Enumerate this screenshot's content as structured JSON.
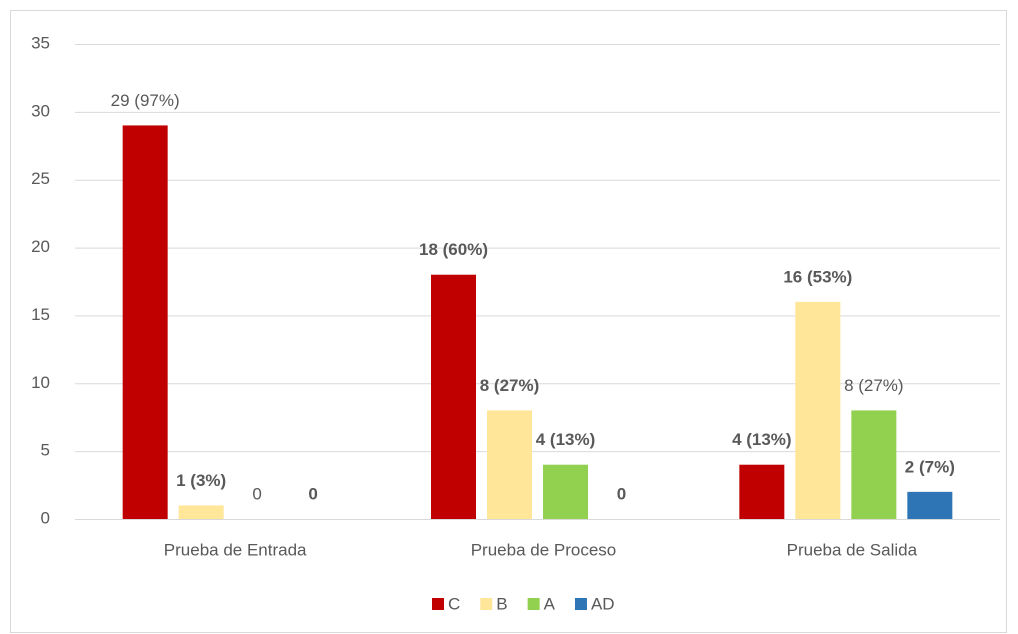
{
  "chart_data": {
    "type": "bar",
    "categories": [
      "Prueba de Entrada",
      "Prueba de Proceso",
      "Prueba de Salida"
    ],
    "series": [
      {
        "name": "C",
        "color": "#c00000",
        "values": [
          29,
          18,
          4
        ],
        "value_labels": [
          "29 (97%)",
          "18 (60%)",
          "4 (13%)"
        ],
        "label_bold": [
          false,
          true,
          true
        ]
      },
      {
        "name": "B",
        "color": "#ffe699",
        "values": [
          1,
          8,
          16
        ],
        "value_labels": [
          "1 (3%)",
          "8 (27%)",
          "16 (53%)"
        ],
        "label_bold": [
          true,
          true,
          true
        ]
      },
      {
        "name": "A",
        "color": "#92d050",
        "values": [
          0,
          4,
          8
        ],
        "value_labels": [
          "0",
          "4 (13%)",
          "8 (27%)"
        ],
        "label_bold": [
          false,
          true,
          false
        ]
      },
      {
        "name": "AD",
        "color": "#2e75b6",
        "values": [
          0,
          0,
          2
        ],
        "value_labels": [
          "0",
          "0",
          "2 (7%)"
        ],
        "label_bold": [
          true,
          true,
          true
        ]
      }
    ],
    "ylim": [
      0,
      35
    ],
    "yticks": [
      0,
      5,
      10,
      15,
      20,
      25,
      30,
      35
    ],
    "grid": true,
    "legend": "bottom"
  }
}
